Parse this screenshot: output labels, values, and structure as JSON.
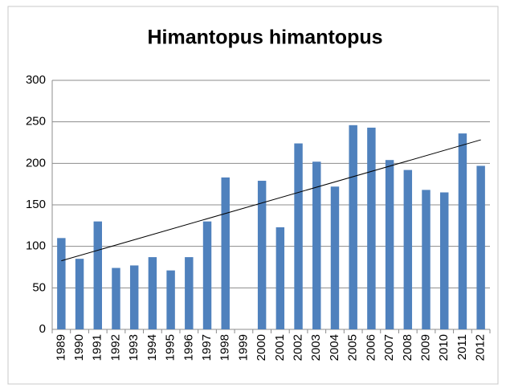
{
  "chart_data": {
    "type": "bar",
    "title": "Himantopus himantopus",
    "categories": [
      "1989",
      "1990",
      "1991",
      "1992",
      "1993",
      "1994",
      "1995",
      "1996",
      "1997",
      "1998",
      "1999",
      "2000",
      "2001",
      "2002",
      "2003",
      "2004",
      "2005",
      "2006",
      "2007",
      "2008",
      "2009",
      "2010",
      "2011",
      "2012"
    ],
    "values": [
      110,
      85,
      130,
      74,
      77,
      87,
      71,
      87,
      130,
      183,
      null,
      179,
      123,
      224,
      202,
      172,
      246,
      243,
      204,
      192,
      168,
      165,
      236,
      197
    ],
    "color": "#4f81bd",
    "ylim": [
      0,
      300
    ],
    "yticks": [
      0,
      50,
      100,
      150,
      200,
      250,
      300
    ],
    "grid": true,
    "trendline": true
  }
}
